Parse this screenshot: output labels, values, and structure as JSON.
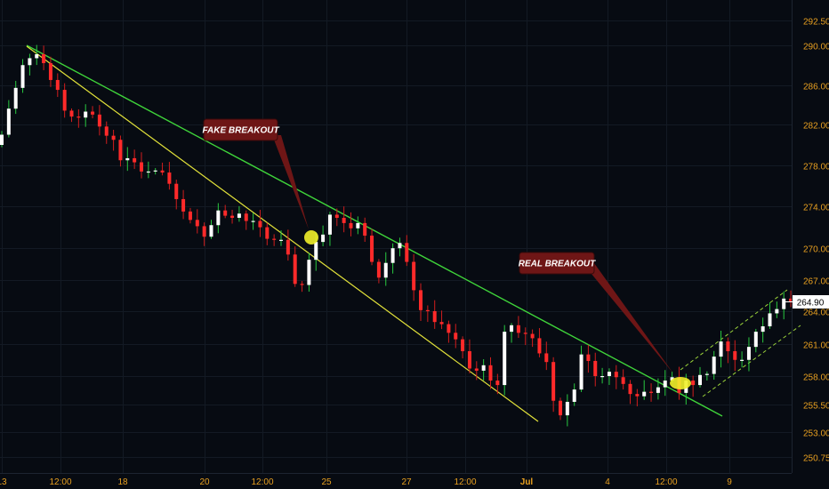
{
  "chart_data": {
    "type": "candlestick",
    "title": "",
    "xlabel": "",
    "ylabel": "",
    "colors": {
      "background": "#070b12",
      "grid": "#131a24",
      "bull": "#ffffff",
      "bear": "#ff2a2a",
      "wick_up": "#29c940",
      "wick_down": "#d11d1d",
      "trendline": "#3fd43a",
      "lower_line": "#e2e23a",
      "channel": "#9bd43a",
      "tick_text": "#e8a020",
      "callout_bg": "#6e1616",
      "marker": "#f2ef2a",
      "price_tag_bg": "#ffffff",
      "price_tag_text": "#000000"
    },
    "y_ticks": [
      "292.50",
      "290.00",
      "286.00",
      "282.00",
      "278.00",
      "274.00",
      "270.00",
      "267.00",
      "264.00",
      "261.00",
      "258.00",
      "255.50",
      "253.00",
      "250.75"
    ],
    "x_ticks": [
      "13",
      "12:00",
      "18",
      "20",
      "12:00",
      "25",
      "27",
      "12:00",
      "Jul",
      "4",
      "12:00",
      "9"
    ],
    "current_price": "264.90",
    "series": [
      {
        "name": "price",
        "close": [
          281.0,
          283.6,
          285.7,
          288.0,
          288.7,
          289.1,
          288.2,
          286.5,
          285.5,
          283.4,
          282.8,
          282.7,
          283.3,
          283.0,
          281.8,
          280.9,
          280.5,
          278.5,
          278.7,
          278.3,
          277.4,
          277.4,
          277.5,
          277.3,
          276.2,
          274.7,
          273.5,
          272.7,
          272.1,
          271.1,
          272.2,
          273.6,
          273.1,
          272.9,
          273.3,
          272.6,
          272.6,
          272.0,
          270.9,
          270.8,
          270.8,
          269.4,
          266.6,
          266.5,
          268.9,
          270.6,
          271.3,
          273.2,
          272.9,
          272.4,
          271.9,
          272.4,
          271.2,
          268.7,
          267.2,
          268.6,
          270.0,
          270.5,
          268.7,
          266.0,
          264.1,
          264.0,
          263.0,
          262.8,
          262.0,
          261.4,
          260.3,
          258.7,
          258.5,
          259.0,
          257.6,
          257.2,
          262.1,
          262.7,
          262.0,
          261.9,
          261.5,
          260.1,
          259.3,
          255.8,
          254.5,
          255.7,
          256.8,
          260.0,
          259.4,
          258.0,
          258.0,
          258.4,
          257.9,
          257.3,
          256.4,
          256.2,
          256.6,
          256.5,
          257.0,
          257.6,
          257.9,
          256.5,
          257.6,
          257.2,
          258.1,
          258.2,
          259.8,
          261.2,
          260.3,
          259.5,
          259.5,
          260.7,
          262.1,
          262.6,
          263.8,
          264.2,
          265.2,
          264.9
        ]
      }
    ],
    "annotations": [
      {
        "label": "FAKE BREAKOUT"
      },
      {
        "label": "REAL BREAKOUT"
      }
    ]
  }
}
